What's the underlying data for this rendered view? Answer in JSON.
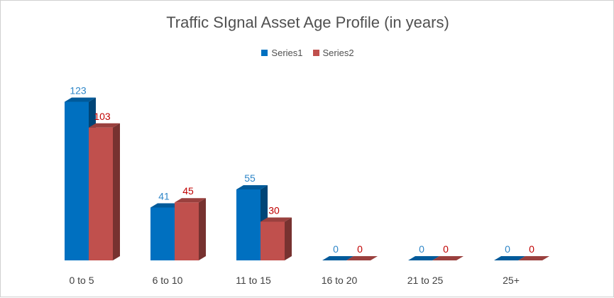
{
  "chart_data": {
    "type": "bar",
    "title": "Traffic SIgnal Asset Age Profile (in years)",
    "categories": [
      "0 to 5",
      "6 to 10",
      "11 to 15",
      "16 to 20",
      "21 to 25",
      "25+"
    ],
    "series": [
      {
        "name": "Series1",
        "values": [
          123,
          41,
          55,
          0,
          0,
          0
        ],
        "color": "#0070c0",
        "label_color": "#2e86c8"
      },
      {
        "name": "Series2",
        "values": [
          103,
          45,
          30,
          0,
          0,
          0
        ],
        "color": "#c0504d",
        "label_color": "#c00000"
      }
    ],
    "ylim": [
      0,
      130
    ],
    "xlabel": "",
    "ylabel": "",
    "grid": false,
    "legend_position": "top",
    "style": "3d-clustered-column"
  }
}
